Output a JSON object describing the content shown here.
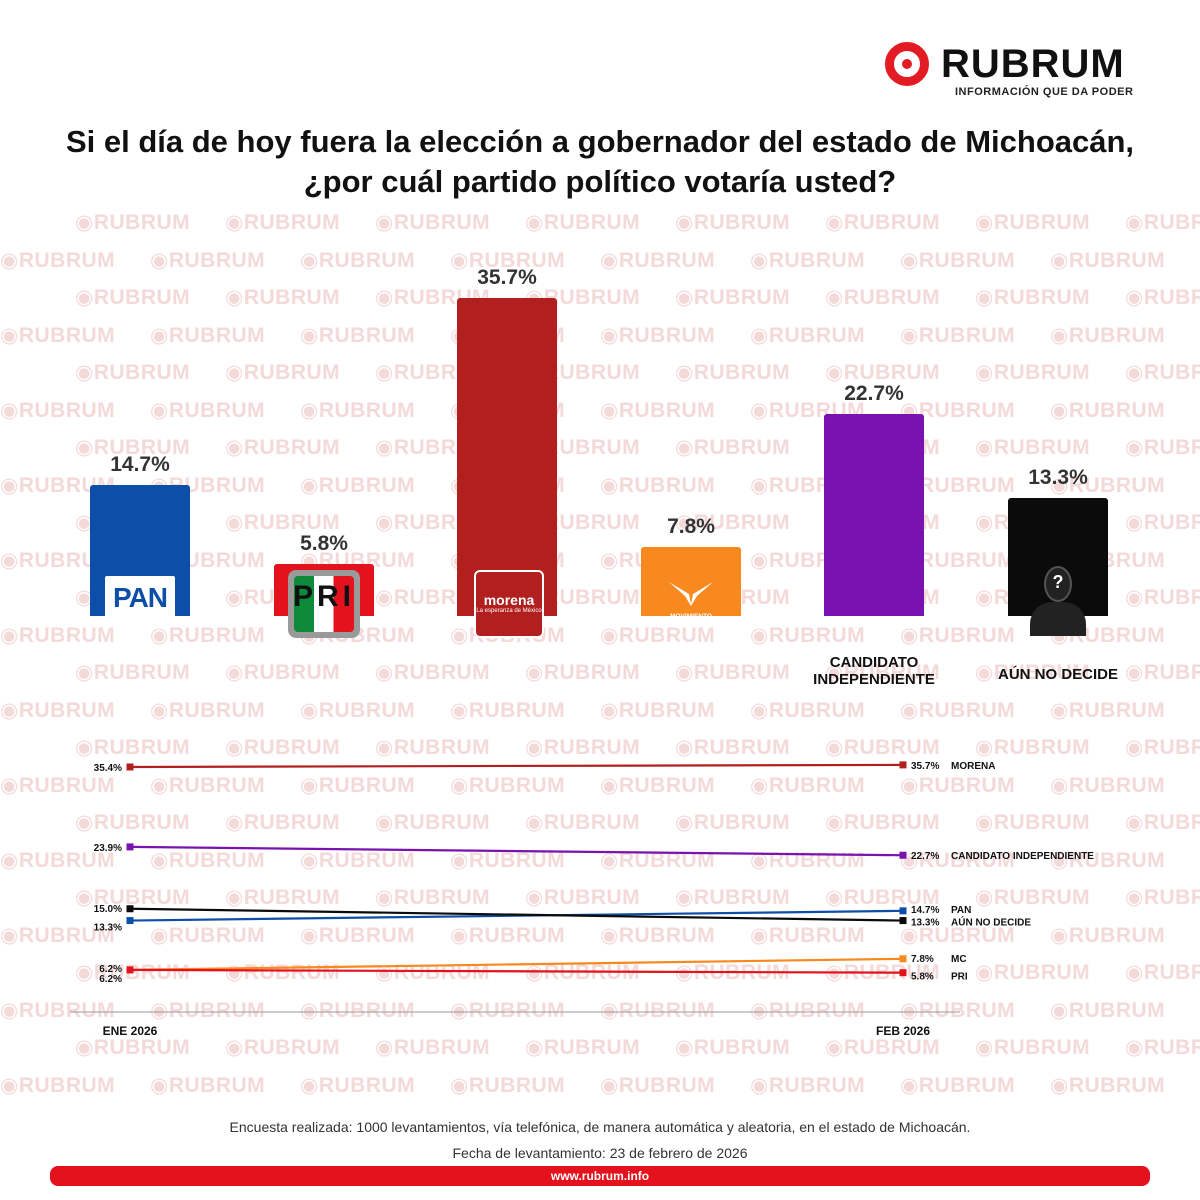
{
  "header": {
    "logo_text": "RUBRUM",
    "logo_tagline": "INFORMACIÓN QUE DA PODER",
    "title": "Si el día de hoy fuera la elección a gobernador del estado de Michoacán, ¿por cuál partido político votaría usted?"
  },
  "watermark_text": "RUBRUM",
  "chart_data": [
    {
      "type": "bar",
      "title": "Si el día de hoy fuera la elección a gobernador del estado de Michoacán, ¿por cuál partido político votaría usted?",
      "categories": [
        "PAN",
        "PRI",
        "morena",
        "MOVIMIENTO CIUDADANO",
        "CANDIDATO INDEPENDIENTE",
        "AÚN NO DECIDE"
      ],
      "values": [
        14.7,
        5.8,
        35.7,
        7.8,
        22.7,
        13.3
      ],
      "value_labels": [
        "14.7%",
        "5.8%",
        "35.7%",
        "7.8%",
        "22.7%",
        "13.3%"
      ],
      "colors": [
        "#0d4fa8",
        "#e3121c",
        "#b11f1f",
        "#f7891e",
        "#7a12b0",
        "#0b0b0b"
      ],
      "ylim": [
        0,
        40
      ],
      "logos": {
        "pan": "PAN",
        "pri": "PRI",
        "morena": "morena",
        "morena_sub": "La esperanza de México",
        "mc_1": "MOVIMIENTO",
        "mc_2": "CIUDADANO",
        "undecided_icon": "?"
      },
      "text_labels": {
        "independiente_1": "CANDIDATO",
        "independiente_2": "INDEPENDIENTE",
        "undecided": "AÚN NO DECIDE"
      }
    },
    {
      "type": "line",
      "x": [
        "ENE 2026",
        "FEB 2026"
      ],
      "ylim": [
        0,
        40
      ],
      "series": [
        {
          "name": "MORENA",
          "values": [
            35.4,
            35.7
          ],
          "labels": [
            "35.4%",
            "35.7%"
          ],
          "color": "#b11f1f"
        },
        {
          "name": "CANDIDATO INDEPENDIENTE",
          "values": [
            23.9,
            22.7
          ],
          "labels": [
            "23.9%",
            "22.7%"
          ],
          "color": "#7a12b0"
        },
        {
          "name": "PAN",
          "values": [
            13.3,
            14.7
          ],
          "labels": [
            "13.3%",
            "14.7%"
          ],
          "color": "#0d4fa8"
        },
        {
          "name": "AÚN NO DECIDE",
          "values": [
            15.0,
            13.3
          ],
          "labels": [
            "15.0%",
            "13.3%"
          ],
          "color": "#0b0b0b"
        },
        {
          "name": "MC",
          "values": [
            6.2,
            7.8
          ],
          "labels": [
            "6.2%",
            "7.8%"
          ],
          "color": "#f7891e"
        },
        {
          "name": "PRI",
          "values": [
            6.2,
            5.8
          ],
          "labels": [
            "6.2%",
            "5.8%"
          ],
          "color": "#e3121c"
        }
      ]
    }
  ],
  "footer": {
    "methodology": "Encuesta realizada: 1000 levantamientos, vía telefónica, de manera automática y aleatoria, en el estado de Michoacán.",
    "date": "Fecha de levantamiento: 23 de febrero de 2026",
    "url": "www.rubrum.info"
  }
}
